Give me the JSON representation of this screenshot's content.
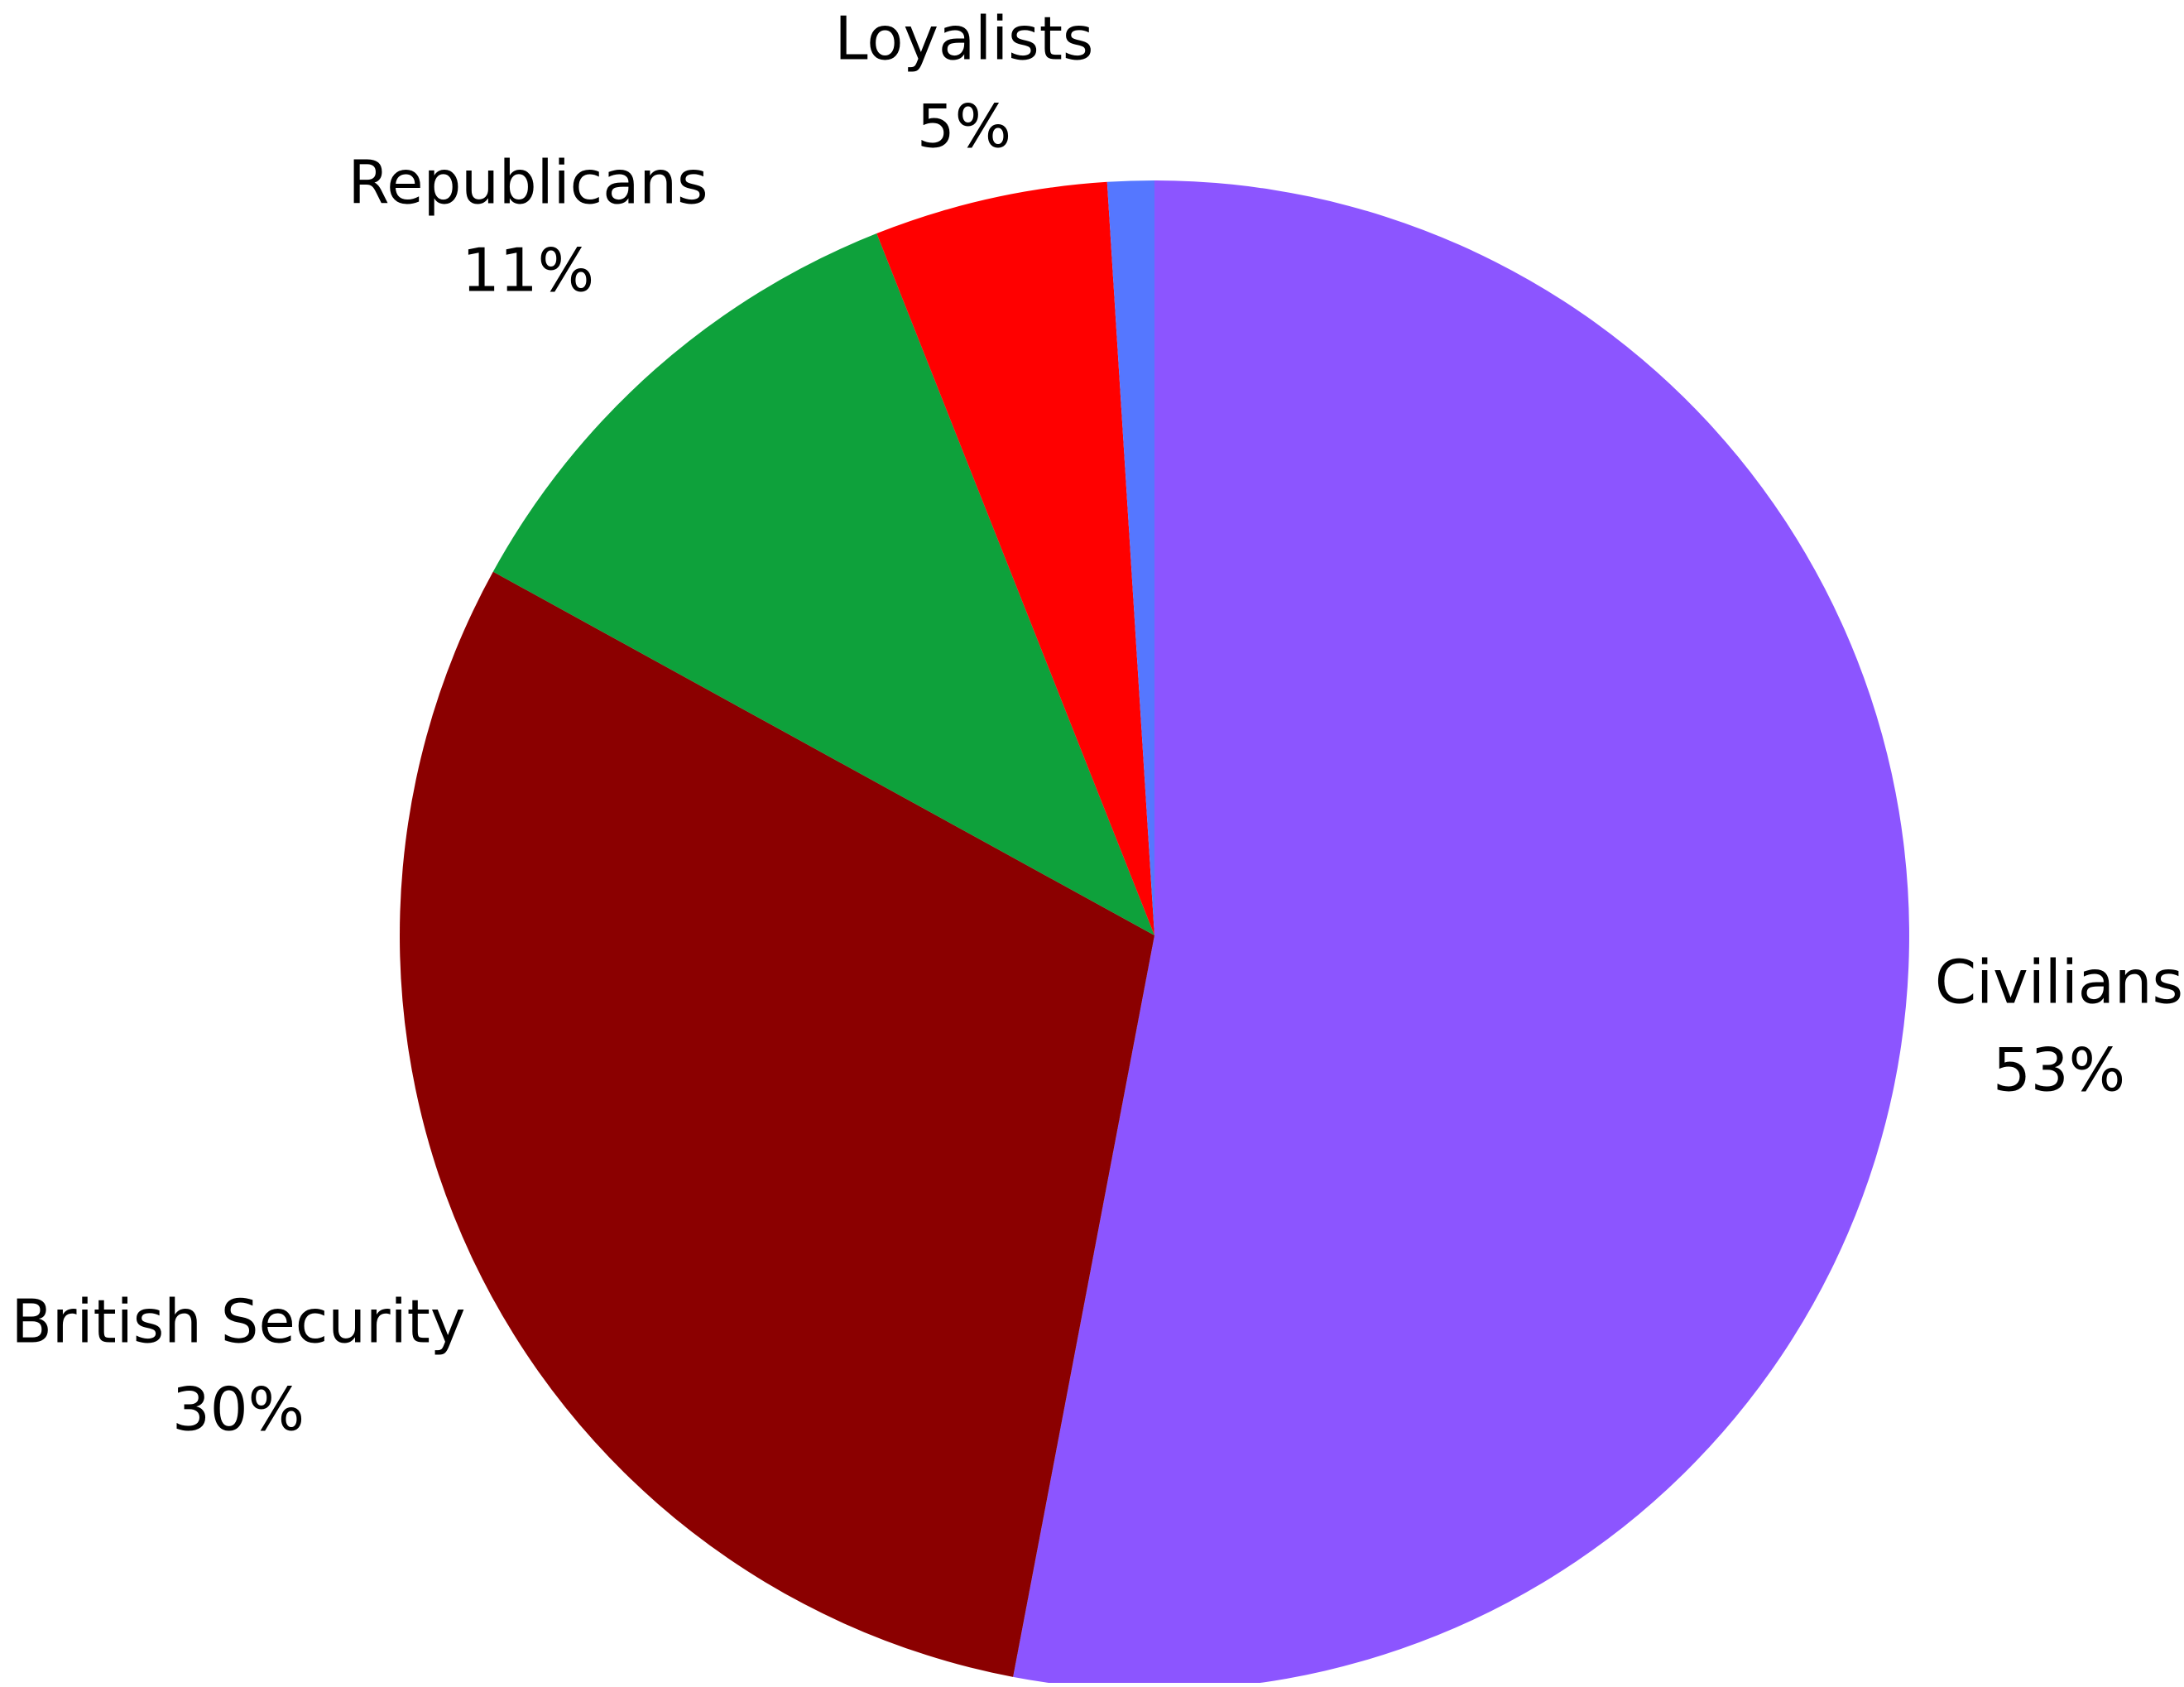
{
  "chart_data": {
    "type": "pie",
    "title": "",
    "slices": [
      {
        "label": "Civilians",
        "value": 53,
        "display": "53%",
        "color": "#8c55ff"
      },
      {
        "label": "British Security",
        "value": 30,
        "display": "30%",
        "color": "#8b0000"
      },
      {
        "label": "Republicans",
        "value": 11,
        "display": "11%",
        "color": "#0ea13b"
      },
      {
        "label": "Loyalists",
        "value": 5,
        "display": "5%",
        "color": "#ff0000"
      },
      {
        "label": "",
        "value": 1,
        "display": "",
        "color": "#5577ff"
      }
    ],
    "legend": "none",
    "start": "top",
    "direction": "clockwise"
  }
}
